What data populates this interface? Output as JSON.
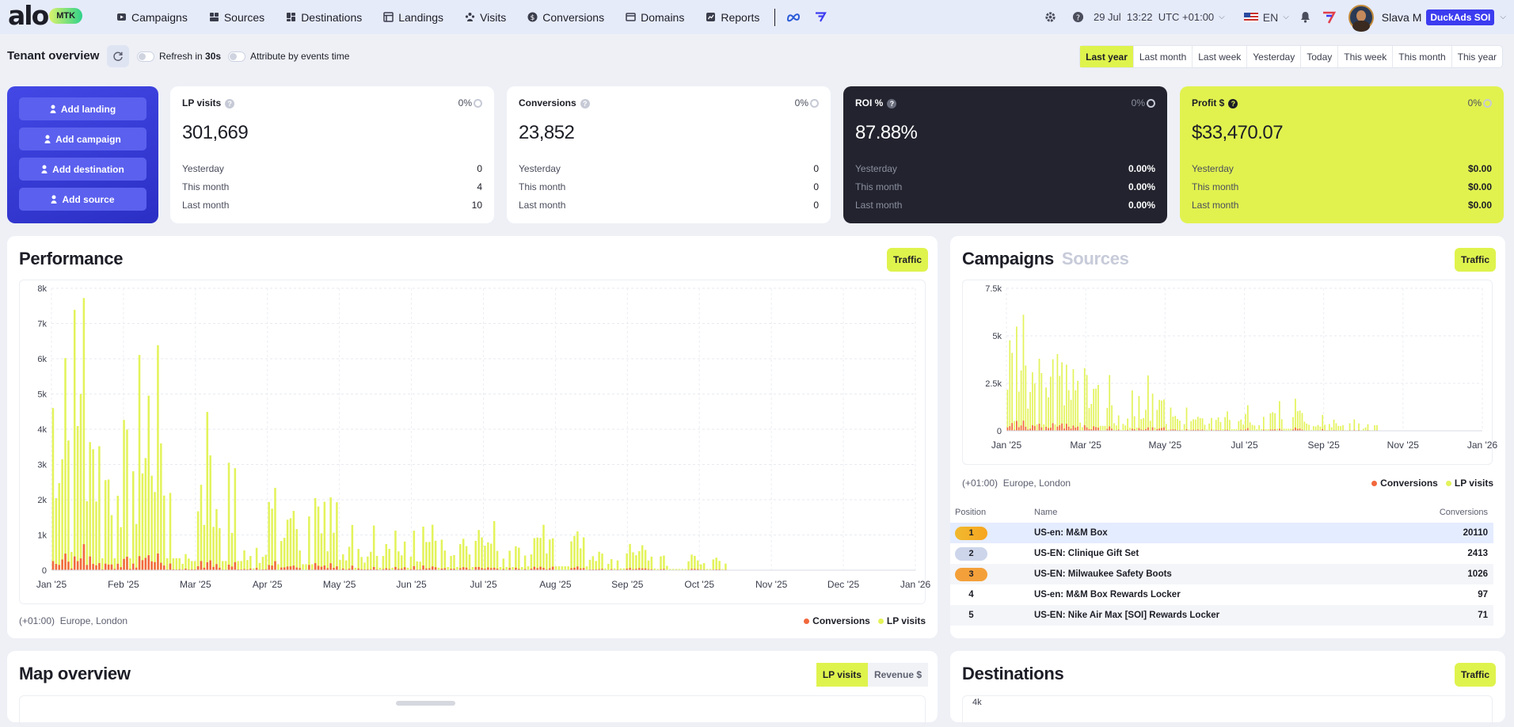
{
  "nav": {
    "logo_text": "alo",
    "logo_badge": "MTK",
    "items": [
      {
        "label": "Campaigns",
        "icon": "campaign-icon"
      },
      {
        "label": "Sources",
        "icon": "sources-icon"
      },
      {
        "label": "Destinations",
        "icon": "destinations-icon"
      },
      {
        "label": "Landings",
        "icon": "landings-icon"
      },
      {
        "label": "Visits",
        "icon": "visits-icon"
      },
      {
        "label": "Conversions",
        "icon": "conversions-icon"
      },
      {
        "label": "Domains",
        "icon": "domains-icon"
      },
      {
        "label": "Reports",
        "icon": "reports-icon"
      }
    ],
    "date": "29 Jul",
    "time": "13:22",
    "timezone": "UTC +01:00",
    "language": "EN",
    "user_name": "Slava M",
    "user_badge": "DuckAds SOI"
  },
  "toolbar": {
    "title": "Tenant overview",
    "refresh_prefix": "Refresh in ",
    "refresh_seconds": "30s",
    "attribute_label": "Attribute by events time",
    "periods": [
      "Last year",
      "Last month",
      "Last week",
      "Yesterday",
      "Today",
      "This week",
      "This month",
      "This year"
    ],
    "active_period": "Last year"
  },
  "actions": [
    "Add landing",
    "Add campaign",
    "Add destination",
    "Add source"
  ],
  "stats": [
    {
      "title": "LP visits",
      "pct": "0%",
      "value": "301,669",
      "rows": [
        {
          "label": "Yesterday",
          "value": "0"
        },
        {
          "label": "This month",
          "value": "4"
        },
        {
          "label": "Last month",
          "value": "10"
        }
      ]
    },
    {
      "title": "Conversions",
      "pct": "0%",
      "value": "23,852",
      "rows": [
        {
          "label": "Yesterday",
          "value": "0"
        },
        {
          "label": "This month",
          "value": "0"
        },
        {
          "label": "Last month",
          "value": "0"
        }
      ]
    },
    {
      "title": "ROI %",
      "pct": "0%",
      "value": "87.88%",
      "rows": [
        {
          "label": "Yesterday",
          "value": "0.00%"
        },
        {
          "label": "This month",
          "value": "0.00%"
        },
        {
          "label": "Last month",
          "value": "0.00%"
        }
      ]
    },
    {
      "title": "Profit $",
      "pct": "0%",
      "value": "$33,470.07",
      "rows": [
        {
          "label": "Yesterday",
          "value": "$0.00"
        },
        {
          "label": "This month",
          "value": "$0.00"
        },
        {
          "label": "Last month",
          "value": "$0.00"
        }
      ]
    }
  ],
  "performance": {
    "title": "Performance",
    "button": "Traffic",
    "timezone": "(+01:00)",
    "location": "Europe, London",
    "legend": [
      "Conversions",
      "LP visits"
    ]
  },
  "campaigns_panel": {
    "title": "Campaigns",
    "tab_inactive": "Sources",
    "button": "Traffic",
    "timezone": "(+01:00)",
    "location": "Europe, London",
    "legend": [
      "Conversions",
      "LP visits"
    ],
    "table": {
      "headers": [
        "Position",
        "Name",
        "Conversions"
      ],
      "rows": [
        {
          "position": "1",
          "name": "US-en: M&M Box",
          "conversions": "20110"
        },
        {
          "position": "2",
          "name": "US-EN: Clinique Gift Set",
          "conversions": "2413"
        },
        {
          "position": "3",
          "name": "US-EN: Milwaukee Safety Boots",
          "conversions": "1026"
        },
        {
          "position": "4",
          "name": "US-en: M&M Box Rewards Locker",
          "conversions": "97"
        },
        {
          "position": "5",
          "name": "US-EN: Nike Air Max [SOI] Rewards Locker",
          "conversions": "71"
        }
      ]
    }
  },
  "map_panel": {
    "title": "Map overview",
    "seg_on": "LP visits",
    "seg_off": "Revenue $"
  },
  "destinations_panel": {
    "title": "Destinations",
    "button": "Traffic",
    "top_tick": "4k"
  },
  "colors": {
    "accent_lime": "#dff34d",
    "lp_visits": "#e3f35a",
    "conversions": "#f2683d",
    "primary_blue": "#3c3cf0",
    "dark_card": "#22232e"
  },
  "chart_data": [
    {
      "type": "bar",
      "title": "Performance",
      "series": [
        {
          "name": "LP visits"
        },
        {
          "name": "Conversions"
        }
      ],
      "x_ticks": [
        "Jan '25",
        "Feb '25",
        "Mar '25",
        "Apr '25",
        "May '25",
        "Jun '25",
        "Jul '25",
        "Aug '25",
        "Sep '25",
        "Oct '25",
        "Nov '25",
        "Dec '25",
        "Jan '26"
      ],
      "y_ticks": [
        "0",
        "1k",
        "2k",
        "3k",
        "4k",
        "5k",
        "6k",
        "7k",
        "8k"
      ],
      "ylim": [
        0,
        8000
      ],
      "grid": true,
      "legend": "bottom-right"
    },
    {
      "type": "bar",
      "title": "Campaigns",
      "series": [
        {
          "name": "LP visits"
        },
        {
          "name": "Conversions"
        }
      ],
      "x_ticks": [
        "Jan '25",
        "Mar '25",
        "May '25",
        "Jul '25",
        "Sep '25",
        "Nov '25",
        "Jan '26"
      ],
      "y_ticks": [
        "0",
        "2.5k",
        "5k",
        "7.5k"
      ],
      "ylim": [
        0,
        7500
      ],
      "grid": true,
      "legend": "bottom-right"
    }
  ]
}
